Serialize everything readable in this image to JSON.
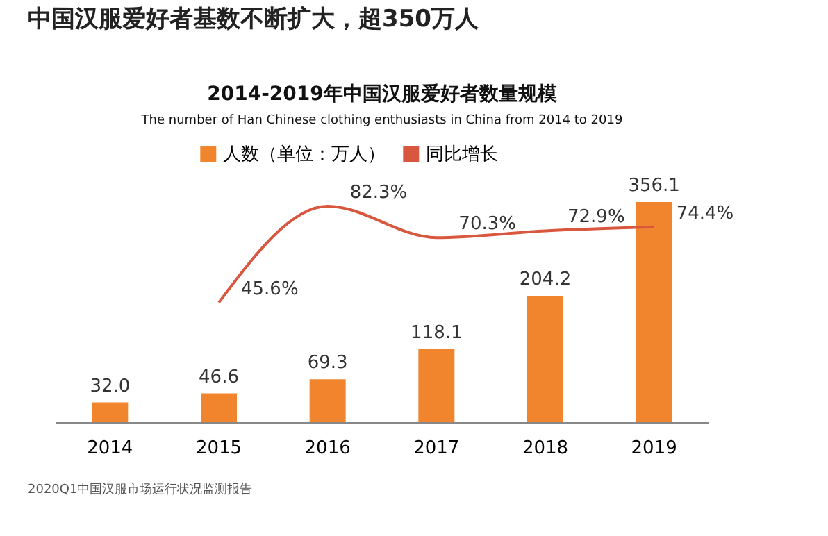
{
  "chart_data": {
    "type": "bar",
    "title": "2014-2019年中国汉服爱好者数量规模",
    "subtitle": "The number of Han Chinese clothing enthusiasts in China from 2014 to 2019",
    "annotations": [
      "中国汉服爱好者基数不断扩大，超350万人",
      "2020Q1中国汉服市场运行状况监测报告"
    ],
    "categories": [
      "2014",
      "2015",
      "2016",
      "2017",
      "2018",
      "2019"
    ],
    "series": [
      {
        "name": "人数（单位：万人）",
        "color": "#f0852d",
        "values": [
          32.0,
          46.6,
          69.3,
          118.1,
          204.2,
          356.1
        ],
        "value_labels": [
          "32.0",
          "46.6",
          "69.3",
          "118.1",
          "204.2",
          "356.1"
        ]
      },
      {
        "name": "同比增长",
        "type": "line",
        "axis": "y2",
        "color": "#d9573f",
        "values": [
          null,
          45.6,
          82.3,
          70.3,
          72.9,
          74.4
        ],
        "value_labels": [
          null,
          "45.6%",
          "82.3%",
          "70.3%",
          "72.9%",
          "74.4%"
        ]
      }
    ],
    "legend": "top",
    "marker": "none",
    "line_style": "solid",
    "grid": false
  }
}
